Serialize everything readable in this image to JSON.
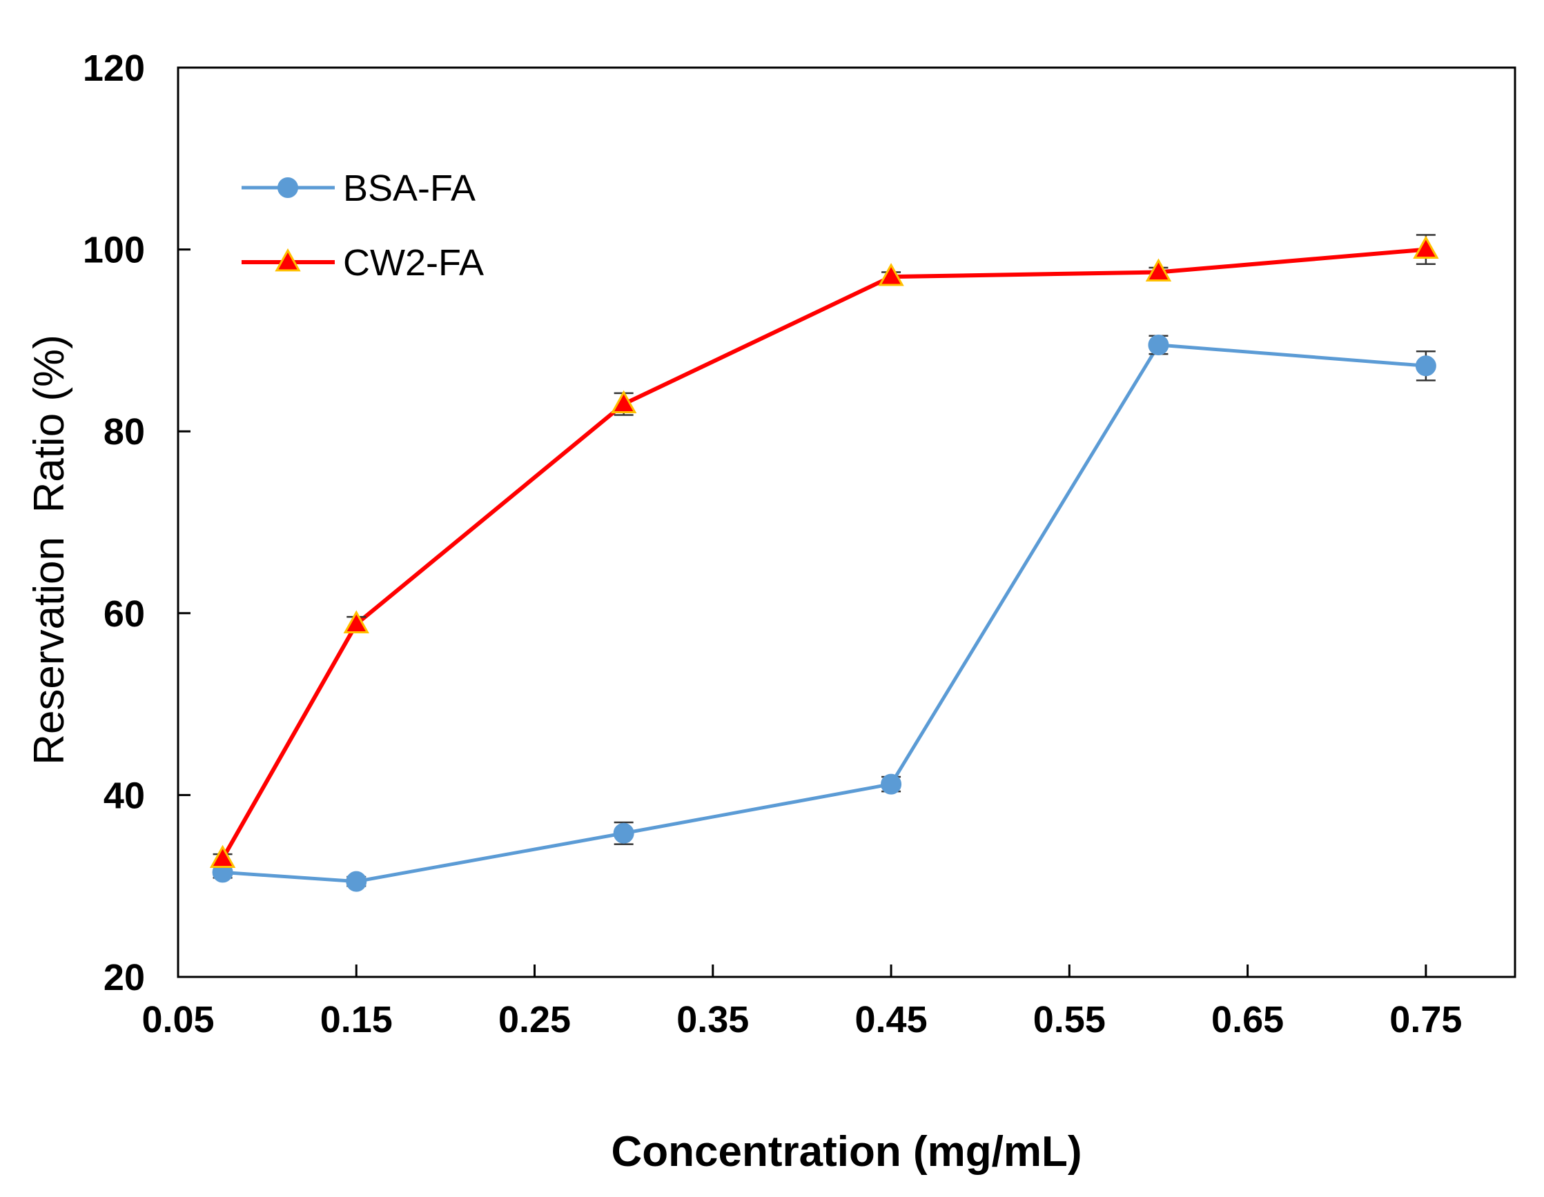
{
  "chart_data": {
    "type": "line",
    "xlabel": "Concentration (mg/mL)",
    "ylabel": "Reservation  Ratio (%)",
    "xlim": [
      0.05,
      0.8
    ],
    "ylim": [
      20,
      120
    ],
    "xticks": [
      0.05,
      0.15,
      0.25,
      0.35,
      0.45,
      0.55,
      0.65,
      0.75
    ],
    "xtick_labels": [
      "0.05",
      "0.15",
      "0.25",
      "0.35",
      "0.45",
      "0.55",
      "0.65",
      "0.75"
    ],
    "yticks": [
      20,
      40,
      60,
      80,
      100,
      120
    ],
    "ytick_labels": [
      "20",
      "40",
      "60",
      "80",
      "100",
      "120"
    ],
    "grid": false,
    "legend_position": "top-left",
    "series": [
      {
        "name": "BSA-FA",
        "color": "#5b9bd5",
        "marker": "circle",
        "x": [
          0.075,
          0.15,
          0.3,
          0.45,
          0.6,
          0.75
        ],
        "y": [
          31.5,
          30.5,
          35.8,
          41.2,
          89.5,
          87.2
        ],
        "error": [
          0.6,
          0.5,
          1.2,
          0.8,
          1.0,
          1.6
        ]
      },
      {
        "name": "CW2-FA",
        "color": "#ff0000",
        "marker": "triangle",
        "x": [
          0.075,
          0.15,
          0.3,
          0.45,
          0.6,
          0.75
        ],
        "y": [
          33.0,
          58.8,
          83.0,
          97.0,
          97.5,
          100.0
        ],
        "error": [
          0.5,
          0.8,
          1.2,
          0.5,
          0.5,
          1.6
        ]
      }
    ]
  }
}
